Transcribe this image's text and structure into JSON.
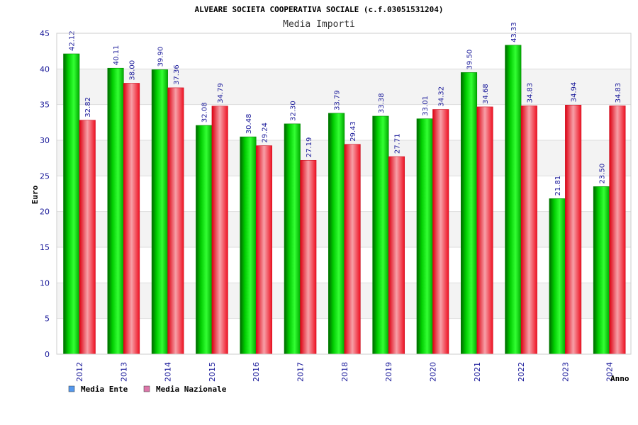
{
  "chart_data": {
    "type": "bar",
    "title": "ALVEARE SOCIETA COOPERATIVA SOCIALE (c.f.03051531204)",
    "subtitle": "Media Importi",
    "xlabel": "Anno",
    "ylabel": "Euro",
    "ylim": [
      0,
      45
    ],
    "yticks": [
      "0",
      "5",
      "10",
      "15",
      "20",
      "25",
      "30",
      "35",
      "40",
      "45"
    ],
    "grid": true,
    "legend_position": "bottom-left",
    "categories": [
      "2012",
      "2013",
      "2014",
      "2015",
      "2016",
      "2017",
      "2018",
      "2019",
      "2020",
      "2021",
      "2022",
      "2023",
      "2024"
    ],
    "series": [
      {
        "name": "Media Ente",
        "color": "#00aa00",
        "legend_color": "#5599ee",
        "values": [
          42.12,
          40.11,
          39.9,
          32.08,
          30.48,
          32.3,
          33.79,
          33.38,
          33.01,
          39.5,
          43.33,
          21.81,
          23.5
        ],
        "labels": [
          "42.12",
          "40.11",
          "39.90",
          "32.08",
          "30.48",
          "32.30",
          "33.79",
          "33.38",
          "33.01",
          "39.50",
          "43.33",
          "21.81",
          "23.50"
        ]
      },
      {
        "name": "Media Nazionale",
        "color": "#ee2233",
        "legend_color": "#dd77aa",
        "values": [
          32.82,
          38.0,
          37.36,
          34.79,
          29.24,
          27.19,
          29.43,
          27.71,
          34.32,
          34.68,
          34.83,
          34.94,
          34.83
        ],
        "labels": [
          "32.82",
          "38.00",
          "37.36",
          "34.79",
          "29.24",
          "27.19",
          "29.43",
          "27.71",
          "34.32",
          "34.68",
          "34.83",
          "34.94",
          "34.83"
        ]
      }
    ]
  }
}
